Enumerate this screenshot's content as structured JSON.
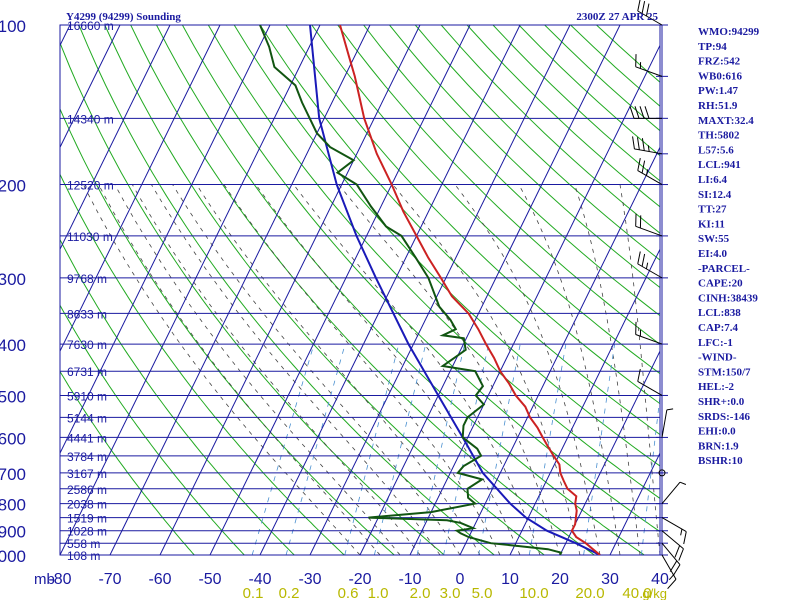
{
  "header": {
    "title": "Y4299 (94299) Sounding",
    "time": "2300Z 27 APR 25"
  },
  "colors": {
    "background": "#ffffff",
    "grid": "#1a1aa0",
    "axis_text": "#1a1aa0",
    "dry_adiabat": "#22aa22",
    "moist_adiabat": "#444444",
    "mixing_ratio": "#4a90d0",
    "temperature": "#cc2222",
    "dewpoint": "#115511",
    "parcel": "#1a1ab8",
    "wind": "#000000",
    "index_text": "#1a1aa0"
  },
  "chart_data": {
    "type": "skew-t log-p sounding",
    "pressure_axis": {
      "unit": "mb",
      "range": [
        1000,
        100
      ],
      "scale": "log",
      "ticks": [
        100,
        200,
        300,
        400,
        500,
        600,
        700,
        800,
        900,
        1000
      ]
    },
    "temperature_axis": {
      "unit": "°C",
      "range": [
        -80,
        40
      ],
      "ticks": [
        -80,
        -70,
        -60,
        -50,
        -40,
        -30,
        -20,
        -10,
        0,
        10,
        20,
        30,
        40
      ],
      "tick_labels": [
        "-80",
        "-70",
        "-60",
        "-50",
        "-40",
        "-30",
        "-20",
        "-10",
        "0",
        "10",
        "20",
        "30",
        "40"
      ]
    },
    "height_labels": [
      {
        "p": 100,
        "label": "16660 m"
      },
      {
        "p": 150,
        "label": "14340 m"
      },
      {
        "p": 200,
        "label": "12520 m"
      },
      {
        "p": 250,
        "label": "11030 m"
      },
      {
        "p": 300,
        "label": "9768 m"
      },
      {
        "p": 350,
        "label": "8633 m"
      },
      {
        "p": 400,
        "label": "7630 m"
      },
      {
        "p": 450,
        "label": "6731 m"
      },
      {
        "p": 500,
        "label": "5910 m"
      },
      {
        "p": 550,
        "label": "5144 m"
      },
      {
        "p": 600,
        "label": "4441 m"
      },
      {
        "p": 650,
        "label": "3784 m"
      },
      {
        "p": 700,
        "label": "3167 m"
      },
      {
        "p": 750,
        "label": "2586 m"
      },
      {
        "p": 800,
        "label": "2038 m"
      },
      {
        "p": 850,
        "label": "1519 m"
      },
      {
        "p": 900,
        "label": "1028 m"
      },
      {
        "p": 950,
        "label": "558 m"
      },
      {
        "p": 1000,
        "label": "108 m"
      }
    ],
    "mixing_ratio_labels": [
      "0.1",
      "0.2",
      "0.6",
      "1.0",
      "2.0",
      "3.0",
      "5.0",
      "10.0",
      "20.0",
      "40.0"
    ],
    "mixing_ratio_values": [
      0.1,
      0.2,
      0.6,
      1.0,
      2.0,
      3.0,
      5.0,
      10.0,
      20.0,
      40.0
    ],
    "mixing_ratio_unit": "g/kg",
    "series": [
      {
        "name": "Temperature",
        "points": [
          [
            1000,
            28.0
          ],
          [
            975,
            26.0
          ],
          [
            950,
            24.0
          ],
          [
            925,
            21.5
          ],
          [
            900,
            20.0
          ],
          [
            875,
            20.0
          ],
          [
            850,
            19.5
          ],
          [
            825,
            19.0
          ],
          [
            800,
            18.0
          ],
          [
            775,
            17.5
          ],
          [
            750,
            15.0
          ],
          [
            725,
            13.5
          ],
          [
            700,
            12.0
          ],
          [
            675,
            11.0
          ],
          [
            650,
            9.0
          ],
          [
            625,
            7.0
          ],
          [
            600,
            5.0
          ],
          [
            575,
            3.0
          ],
          [
            550,
            0.5
          ],
          [
            525,
            -1.5
          ],
          [
            500,
            -4.5
          ],
          [
            475,
            -7.0
          ],
          [
            450,
            -10.0
          ],
          [
            425,
            -12.5
          ],
          [
            400,
            -15.5
          ],
          [
            375,
            -18.5
          ],
          [
            350,
            -22.0
          ],
          [
            325,
            -27.0
          ],
          [
            300,
            -31.0
          ],
          [
            275,
            -35.5
          ],
          [
            250,
            -40.0
          ],
          [
            225,
            -45.0
          ],
          [
            200,
            -50.0
          ],
          [
            175,
            -56.0
          ],
          [
            150,
            -62.0
          ],
          [
            125,
            -68.0
          ],
          [
            115,
            -71.0
          ],
          [
            100,
            -76.0
          ]
        ]
      },
      {
        "name": "Dewpoint",
        "points": [
          [
            1000,
            20.0
          ],
          [
            990,
            20.0
          ],
          [
            975,
            17.0
          ],
          [
            960,
            10.0
          ],
          [
            950,
            5.0
          ],
          [
            925,
            0.0
          ],
          [
            910,
            -2.0
          ],
          [
            900,
            -3.0
          ],
          [
            890,
            0.0
          ],
          [
            870,
            -3.0
          ],
          [
            860,
            -6.0
          ],
          [
            850,
            -22.0
          ],
          [
            830,
            -10.0
          ],
          [
            800,
            -2.0
          ],
          [
            780,
            -4.0
          ],
          [
            750,
            -5.0
          ],
          [
            720,
            -3.0
          ],
          [
            700,
            -8.5
          ],
          [
            680,
            -8.0
          ],
          [
            650,
            -5.5
          ],
          [
            630,
            -7.0
          ],
          [
            600,
            -11.0
          ],
          [
            570,
            -12.0
          ],
          [
            550,
            -12.0
          ],
          [
            520,
            -10.0
          ],
          [
            500,
            -12.5
          ],
          [
            480,
            -12.0
          ],
          [
            450,
            -15.0
          ],
          [
            440,
            -22.0
          ],
          [
            420,
            -20.0
          ],
          [
            410,
            -19.0
          ],
          [
            390,
            -20.5
          ],
          [
            385,
            -25.0
          ],
          [
            375,
            -23.0
          ],
          [
            360,
            -25.0
          ],
          [
            340,
            -28.5
          ],
          [
            300,
            -33.5
          ],
          [
            275,
            -38.0
          ],
          [
            250,
            -43.0
          ],
          [
            240,
            -47.0
          ],
          [
            220,
            -52.0
          ],
          [
            200,
            -57.0
          ],
          [
            190,
            -62.0
          ],
          [
            180,
            -60.0
          ],
          [
            170,
            -66.0
          ],
          [
            160,
            -70.0
          ],
          [
            140,
            -76.0
          ],
          [
            130,
            -79.0
          ],
          [
            120,
            -85.0
          ],
          [
            110,
            -88.0
          ],
          [
            100,
            -92.0
          ]
        ]
      },
      {
        "name": "Parcel",
        "points": [
          [
            1000,
            28.0
          ],
          [
            950,
            22.0
          ],
          [
            900,
            15.0
          ],
          [
            850,
            9.5
          ],
          [
            800,
            5.0
          ],
          [
            700,
            -3.5
          ],
          [
            600,
            -11.0
          ],
          [
            500,
            -20.0
          ],
          [
            400,
            -31.0
          ],
          [
            300,
            -44.0
          ],
          [
            250,
            -52.0
          ],
          [
            200,
            -61.0
          ],
          [
            150,
            -71.0
          ],
          [
            100,
            -82.0
          ]
        ]
      }
    ],
    "wind_barbs": [
      {
        "p": 100,
        "dir": 300,
        "spd": 30
      },
      {
        "p": 125,
        "dir": 290,
        "spd": 15
      },
      {
        "p": 150,
        "dir": 270,
        "spd": 40
      },
      {
        "p": 175,
        "dir": 280,
        "spd": 35
      },
      {
        "p": 200,
        "dir": 300,
        "spd": 25
      },
      {
        "p": 250,
        "dir": 290,
        "spd": 20
      },
      {
        "p": 300,
        "dir": 300,
        "spd": 25
      },
      {
        "p": 400,
        "dir": 290,
        "spd": 15
      },
      {
        "p": 500,
        "dir": 300,
        "spd": 10
      },
      {
        "p": 600,
        "dir": 10,
        "spd": 5
      },
      {
        "p": 700,
        "dir": 0,
        "spd": 0
      },
      {
        "p": 800,
        "dir": 40,
        "spd": 5
      },
      {
        "p": 850,
        "dir": 120,
        "spd": 15
      },
      {
        "p": 900,
        "dir": 130,
        "spd": 20
      },
      {
        "p": 950,
        "dir": 140,
        "spd": 20
      },
      {
        "p": 1000,
        "dir": 150,
        "spd": 15
      }
    ]
  },
  "indices": [
    "WMO:94299",
    "TP:94",
    "FRZ:542",
    "WB0:616",
    "PW:1.47",
    "RH:51.9",
    "MAXT:32.4",
    "TH:5802",
    "L57:5.6",
    "LCL:941",
    "LI:6.4",
    "SI:12.4",
    "TT:27",
    "KI:11",
    "SW:55",
    "EI:4.0",
    "-PARCEL-",
    "CAPE:20",
    "CINH:38439",
    "LCL:838",
    "CAP:7.4",
    "LFC:-1",
    "-WIND-",
    "STM:150/7",
    "HEL:-2",
    "SHR+:0.0",
    "SRDS:-146",
    "EHI:0.0",
    "BRN:1.9",
    "BSHR:10"
  ]
}
